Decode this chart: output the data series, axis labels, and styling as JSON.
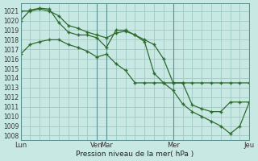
{
  "xlabel": "Pression niveau de la mer( hPa )",
  "bg_color": "#c8e8e4",
  "grid_color": "#98c4be",
  "line_color": "#2d6b2d",
  "ylim": [
    1007.5,
    1021.8
  ],
  "yticks": [
    1008,
    1009,
    1010,
    1011,
    1012,
    1013,
    1014,
    1015,
    1016,
    1017,
    1018,
    1019,
    1020,
    1021
  ],
  "day_labels": [
    "Lun",
    "Ven",
    "Mar",
    "Mer",
    "Jeu"
  ],
  "day_positions": [
    0,
    8,
    9,
    16,
    24
  ],
  "xlim": [
    0,
    24
  ],
  "num_xgrid": 24,
  "series1_x": [
    0,
    1,
    2,
    3,
    4,
    5,
    6,
    7,
    8,
    9,
    10,
    11,
    12,
    13,
    14,
    15,
    16,
    17,
    18,
    19,
    20,
    21,
    22,
    23,
    24
  ],
  "series1_y": [
    1021.0,
    1021.0,
    1021.2,
    1021.0,
    1020.5,
    1019.5,
    1019.2,
    1018.8,
    1018.5,
    1018.2,
    1018.7,
    1018.9,
    1018.5,
    1018.0,
    1017.5,
    1016.0,
    1013.5,
    1013.5,
    1013.5,
    1013.5,
    1013.5,
    1013.5,
    1013.5,
    1013.5,
    1013.5
  ],
  "series2_x": [
    0,
    1,
    2,
    3,
    4,
    5,
    6,
    7,
    8,
    9,
    10,
    11,
    12,
    13,
    14,
    15,
    16,
    17,
    18,
    19,
    20,
    21,
    22,
    23,
    24
  ],
  "series2_y": [
    1020.0,
    1021.1,
    1021.3,
    1021.2,
    1019.8,
    1018.8,
    1018.5,
    1018.5,
    1018.2,
    1017.2,
    1019.0,
    1019.0,
    1018.5,
    1017.8,
    1014.5,
    1013.5,
    1013.5,
    1013.5,
    1011.2,
    1010.8,
    1010.5,
    1010.5,
    1011.5,
    1011.5,
    1011.5
  ],
  "series3_x": [
    0,
    1,
    2,
    3,
    4,
    5,
    6,
    7,
    8,
    9,
    10,
    11,
    12,
    13,
    14,
    15,
    16,
    17,
    18,
    19,
    20,
    21,
    22,
    23,
    24
  ],
  "series3_y": [
    1016.5,
    1017.5,
    1017.8,
    1018.0,
    1018.0,
    1017.5,
    1017.2,
    1016.8,
    1016.2,
    1016.5,
    1015.5,
    1014.8,
    1013.5,
    1013.5,
    1013.5,
    1013.5,
    1012.7,
    1011.3,
    1010.5,
    1010.0,
    1009.5,
    1009.0,
    1008.2,
    1009.0,
    1011.5
  ]
}
